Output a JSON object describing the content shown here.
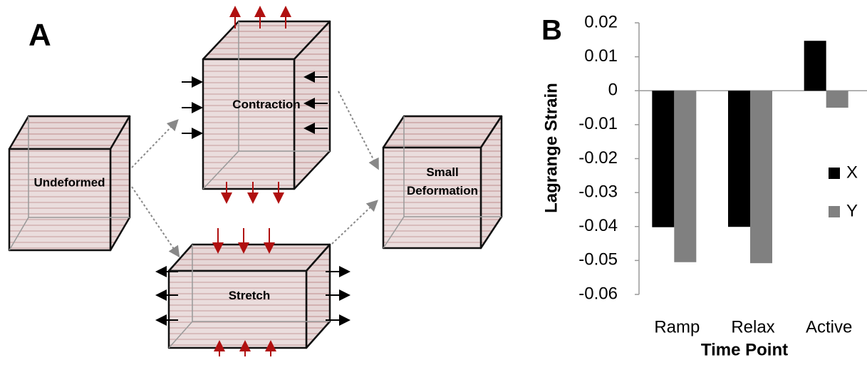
{
  "diagram": {
    "panel_label": "A",
    "nodes": [
      {
        "lines": [
          "Undeformed"
        ]
      },
      {
        "lines": [
          "Contraction"
        ]
      },
      {
        "lines": [
          "Stretch"
        ]
      },
      {
        "lines": [
          "Small",
          "Deformation"
        ]
      }
    ]
  },
  "chart_data": {
    "type": "bar",
    "panel_label": "B",
    "categories": [
      "Ramp",
      "Relax",
      "Active"
    ],
    "series": [
      {
        "name": "X",
        "color": "#000000",
        "values": [
          -0.0402,
          -0.0401,
          0.0147
        ]
      },
      {
        "name": "Y",
        "color": "#808080",
        "values": [
          -0.0505,
          -0.0508,
          -0.005
        ]
      }
    ],
    "ylim": [
      -0.06,
      0.02
    ],
    "yticks": [
      -0.06,
      -0.05,
      -0.04,
      -0.03,
      -0.02,
      -0.01,
      0,
      0.01,
      0.02
    ],
    "ylabel": "Lagrange Strain",
    "xlabel": "Time Point",
    "legend": "right",
    "grid": false
  }
}
